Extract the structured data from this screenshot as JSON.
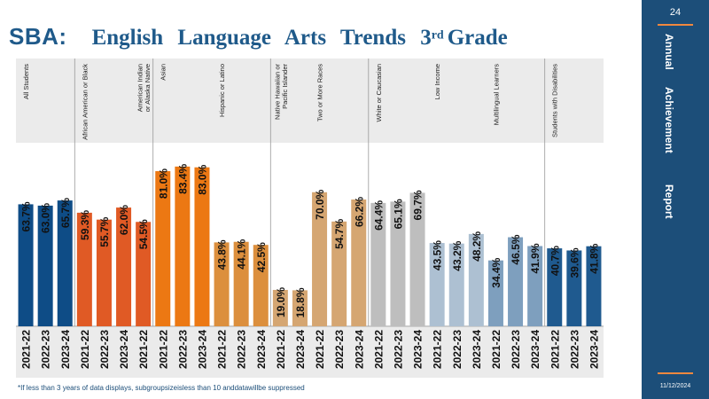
{
  "title": {
    "prefix": "SBA:",
    "main": "English Language Arts Trends 3",
    "superscript": "rd",
    "suffix": "Grade"
  },
  "side_panel": {
    "page_number": "24",
    "word1": "Annual",
    "word2": "Achievement",
    "word3": "Report",
    "date": "11/12/2024"
  },
  "footnote": "*If less than 3 years of data displays, subgroupsizeisless than 10 anddatawillbe suppressed",
  "colors": {
    "header_bg": "#ebebeb",
    "label_color": "#111111",
    "accent": "#f0883e",
    "panel": "#1c4e79"
  },
  "chart_data": {
    "type": "bar",
    "ylim": [
      0,
      100
    ],
    "value_suffix": "%",
    "groups": [
      {
        "name": "All Students",
        "color": "#0e4c86",
        "years": [
          "2021-22",
          "2022-23",
          "2023-24"
        ],
        "values": [
          63.7,
          63.0,
          65.7
        ]
      },
      {
        "name": "African American or Black",
        "color": "#e05a25",
        "years": [
          "2021-22",
          "2022-23",
          "2023-24"
        ],
        "values": [
          59.3,
          55.7,
          62.0
        ]
      },
      {
        "name": "American Indian or Alaska Native",
        "color": "#e05a25",
        "years": [
          "2021-22"
        ],
        "values": [
          54.5
        ]
      },
      {
        "name": "Asian",
        "color": "#ec7813",
        "years": [
          "2021-22",
          "2022-23",
          "2023-24"
        ],
        "values": [
          81.0,
          83.4,
          83.0
        ]
      },
      {
        "name": "Hispanic or Latino",
        "color": "#dc8f3d",
        "years": [
          "2021-22",
          "2022-23",
          "2023-24"
        ],
        "values": [
          43.8,
          44.1,
          42.5
        ]
      },
      {
        "name": "Native Hawaiian or Pacific Islander",
        "color": "#d5a672",
        "years": [
          "2021-22",
          "2023-24"
        ],
        "values": [
          19.0,
          18.8
        ]
      },
      {
        "name": "Two or More Races",
        "color": "#d5a672",
        "years": [
          "2021-22",
          "2022-23",
          "2023-24"
        ],
        "values": [
          70.0,
          54.7,
          66.2
        ]
      },
      {
        "name": "White or Caucasian",
        "color": "#bebebe",
        "years": [
          "2021-22",
          "2022-23",
          "2023-24"
        ],
        "values": [
          64.4,
          65.1,
          69.7
        ]
      },
      {
        "name": "Low Income",
        "color": "#adc0d2",
        "years": [
          "2021-22",
          "2022-23",
          "2023-24"
        ],
        "values": [
          43.5,
          43.2,
          48.2
        ]
      },
      {
        "name": "Multilingual Learners",
        "color": "#7e9fbe",
        "years": [
          "2021-22",
          "2022-23",
          "2023-24"
        ],
        "values": [
          34.4,
          46.5,
          41.9
        ]
      },
      {
        "name": "Students with Disabilities",
        "color": "#1f5a8f",
        "years": [
          "2021-22",
          "2022-23",
          "2023-24"
        ],
        "values": [
          40.7,
          39.6,
          41.8
        ]
      }
    ]
  }
}
